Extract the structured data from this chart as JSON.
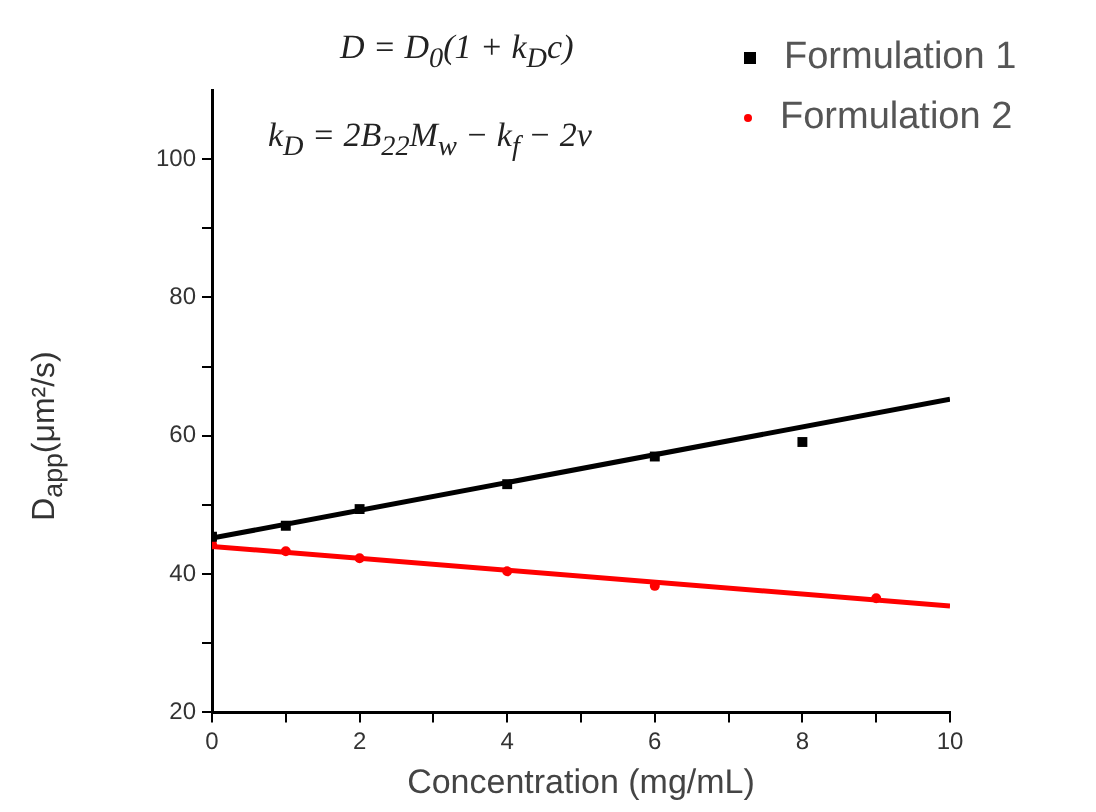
{
  "chart_data": {
    "type": "scatter",
    "xlabel": "Concentration (mg/mL)",
    "ylabel": "D$_{app}$(μm²/s)",
    "annotations": [
      "D = D$_{0}$(1 + k$_{D}$c)",
      "k$_{D}$ = 2B$_{22}$M$_{w}$ − k$_{f}$ − 2v"
    ],
    "xlim": [
      0,
      10
    ],
    "xticks": [
      0,
      {
        "value": 1,
        "label": null
      },
      2,
      {
        "value": 3,
        "label": null
      },
      4,
      {
        "value": 5,
        "label": null
      },
      6,
      {
        "value": 7,
        "label": null
      },
      8,
      {
        "value": 9,
        "label": null
      },
      10
    ],
    "ylim": [
      20,
      110
    ],
    "yticks": [
      20,
      {
        "value": 30,
        "label": null
      },
      40,
      {
        "value": 50,
        "label": null
      },
      60,
      {
        "value": 70,
        "label": null
      },
      80,
      {
        "value": 90,
        "label": null
      },
      100
    ],
    "grid": false,
    "legend": "top right",
    "series": [
      {
        "name": "Formulation 1",
        "marker": "square",
        "color": "#000000",
        "x": [
          0,
          1,
          2,
          4,
          6,
          8
        ],
        "values": [
          45.4,
          47,
          49.4,
          53,
          57,
          59.1
        ]
      },
      {
        "name": "Formulation 2",
        "marker": "circle",
        "color": "#ff0000",
        "x": [
          0,
          1,
          2,
          4,
          6,
          9
        ],
        "values": [
          44.3,
          43.3,
          42.3,
          40.4,
          38.3,
          36.5
        ]
      },
      {
        "type": "line",
        "marker": "none",
        "color": "#000000",
        "x": [
          0,
          10
        ],
        "values": [
          45.2,
          65.3
        ]
      },
      {
        "type": "line",
        "marker": "none",
        "color": "#ff0000",
        "x": [
          0,
          10
        ],
        "values": [
          44,
          35.4
        ]
      }
    ]
  }
}
